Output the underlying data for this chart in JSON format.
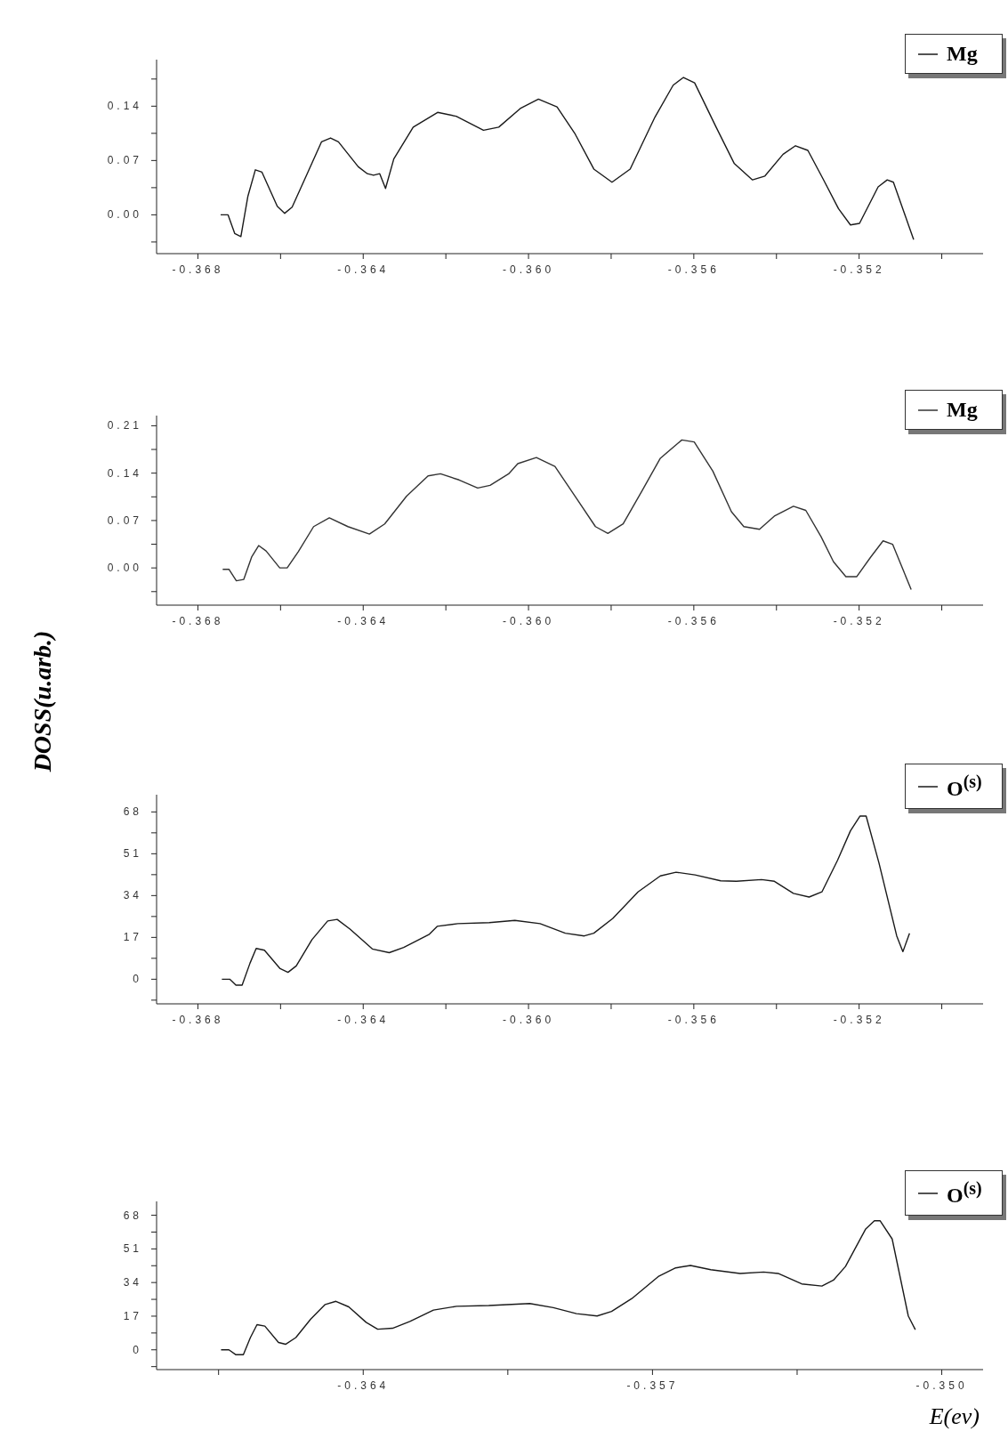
{
  "chart_data": [
    {
      "type": "line",
      "legend": "top right",
      "marker": "none",
      "grid": false,
      "xlim": [
        -0.369,
        -0.349
      ],
      "xticks": [
        {
          "value": -0.368,
          "label": "-0.368"
        },
        {
          "value": -0.366,
          "label": null
        },
        {
          "value": -0.364,
          "label": "-0.364"
        },
        {
          "value": -0.362,
          "label": null
        },
        {
          "value": -0.36,
          "label": "-0.360"
        },
        {
          "value": -0.358,
          "label": null
        },
        {
          "value": -0.356,
          "label": "-0.356"
        },
        {
          "value": -0.354,
          "label": null
        },
        {
          "value": -0.352,
          "label": "-0.352"
        },
        {
          "value": -0.35,
          "label": null
        }
      ],
      "ylim": [
        -0.05,
        0.2
      ],
      "yticks": [
        {
          "value": -0.035,
          "label": null
        },
        {
          "value": 0,
          "label": "0.00"
        },
        {
          "value": 0.035,
          "label": null
        },
        {
          "value": 0.07,
          "label": "0.07"
        },
        {
          "value": 0.105,
          "label": null
        },
        {
          "value": 0.14,
          "label": "0.14"
        },
        {
          "value": 0.175,
          "label": null
        }
      ],
      "series": [
        {
          "name": "Mg",
          "color": "#1a1a1a",
          "x": [
            -0.36745,
            -0.36727,
            -0.36711,
            -0.36696,
            -0.36679,
            -0.36661,
            -0.36645,
            -0.36608,
            -0.3659,
            -0.36572,
            -0.36538,
            -0.36501,
            -0.36479,
            -0.3646,
            -0.36412,
            -0.3639,
            -0.36375,
            -0.3636,
            -0.36346,
            -0.36326,
            -0.36279,
            -0.3622,
            -0.36175,
            -0.36109,
            -0.36072,
            -0.3602,
            -0.35976,
            -0.35931,
            -0.35887,
            -0.35842,
            -0.35798,
            -0.35754,
            -0.35694,
            -0.3565,
            -0.35625,
            -0.35598,
            -0.35546,
            -0.35502,
            -0.35458,
            -0.35428,
            -0.35384,
            -0.35354,
            -0.35324,
            -0.35287,
            -0.3525,
            -0.35221,
            -0.35199,
            -0.35154,
            -0.35132,
            -0.35117,
            -0.35068
          ],
          "values": [
            0,
            0,
            -0.024,
            -0.028,
            0.024,
            0.058,
            0.055,
            0.011,
            0.002,
            0.01,
            0.05,
            0.094,
            0.099,
            0.094,
            0.062,
            0.053,
            0.051,
            0.053,
            0.034,
            0.072,
            0.113,
            0.132,
            0.127,
            0.109,
            0.113,
            0.137,
            0.149,
            0.139,
            0.104,
            0.059,
            0.042,
            0.059,
            0.126,
            0.167,
            0.177,
            0.17,
            0.113,
            0.066,
            0.045,
            0.05,
            0.078,
            0.089,
            0.083,
            0.046,
            0.008,
            -0.013,
            -0.011,
            0.036,
            0.045,
            0.042,
            -0.032
          ]
        }
      ]
    },
    {
      "type": "line",
      "legend": "top right",
      "marker": "none",
      "grid": false,
      "xlim": [
        -0.369,
        -0.349
      ],
      "xticks": [
        {
          "value": -0.368,
          "label": "-0.368"
        },
        {
          "value": -0.366,
          "label": null
        },
        {
          "value": -0.364,
          "label": "-0.364"
        },
        {
          "value": -0.362,
          "label": null
        },
        {
          "value": -0.36,
          "label": "-0.360"
        },
        {
          "value": -0.358,
          "label": null
        },
        {
          "value": -0.356,
          "label": "-0.356"
        },
        {
          "value": -0.354,
          "label": null
        },
        {
          "value": -0.352,
          "label": "-0.352"
        },
        {
          "value": -0.35,
          "label": null
        }
      ],
      "ylim": [
        -0.055,
        0.225
      ],
      "yticks": [
        {
          "value": -0.035,
          "label": null
        },
        {
          "value": 0,
          "label": "0.00"
        },
        {
          "value": 0.035,
          "label": null
        },
        {
          "value": 0.07,
          "label": "0.07"
        },
        {
          "value": 0.105,
          "label": null
        },
        {
          "value": 0.14,
          "label": "0.14"
        },
        {
          "value": 0.175,
          "label": null
        },
        {
          "value": 0.21,
          "label": "0.21"
        }
      ],
      "series": [
        {
          "name": "Mg",
          "color": "#333333",
          "x": [
            -0.3674,
            -0.36725,
            -0.36707,
            -0.36689,
            -0.3667,
            -0.36653,
            -0.36635,
            -0.36602,
            -0.36584,
            -0.36557,
            -0.3652,
            -0.36482,
            -0.36437,
            -0.36385,
            -0.36348,
            -0.36295,
            -0.36243,
            -0.36213,
            -0.36168,
            -0.36123,
            -0.36093,
            -0.36048,
            -0.36026,
            -0.35981,
            -0.35936,
            -0.35883,
            -0.35838,
            -0.35808,
            -0.35771,
            -0.35726,
            -0.35681,
            -0.35629,
            -0.35599,
            -0.35554,
            -0.35509,
            -0.35479,
            -0.35441,
            -0.35404,
            -0.35359,
            -0.35329,
            -0.35292,
            -0.35262,
            -0.35232,
            -0.35206,
            -0.35172,
            -0.35142,
            -0.35119,
            -0.35074
          ],
          "values": [
            -0.002,
            -0.002,
            -0.019,
            -0.017,
            0.016,
            0.033,
            0.025,
            0,
            0,
            0.024,
            0.061,
            0.074,
            0.061,
            0.05,
            0.065,
            0.106,
            0.136,
            0.139,
            0.13,
            0.118,
            0.122,
            0.139,
            0.154,
            0.163,
            0.15,
            0.102,
            0.061,
            0.051,
            0.065,
            0.113,
            0.162,
            0.189,
            0.186,
            0.143,
            0.083,
            0.061,
            0.057,
            0.077,
            0.091,
            0.085,
            0.046,
            0.009,
            -0.013,
            -0.013,
            0.016,
            0.04,
            0.035,
            -0.032
          ]
        }
      ]
    },
    {
      "type": "line",
      "legend": "top right",
      "marker": "none",
      "grid": false,
      "ylabel": "DOSS(u.arb.)",
      "xlim": [
        -0.369,
        -0.349
      ],
      "xticks": [
        {
          "value": -0.368,
          "label": "-0.368"
        },
        {
          "value": -0.366,
          "label": null
        },
        {
          "value": -0.364,
          "label": "-0.364"
        },
        {
          "value": -0.362,
          "label": null
        },
        {
          "value": -0.36,
          "label": "-0.360"
        },
        {
          "value": -0.358,
          "label": null
        },
        {
          "value": -0.356,
          "label": "-0.356"
        },
        {
          "value": -0.354,
          "label": null
        },
        {
          "value": -0.352,
          "label": "-0.352"
        },
        {
          "value": -0.35,
          "label": null
        }
      ],
      "ylim": [
        -10,
        75
      ],
      "yticks": [
        {
          "value": -8.5,
          "label": null
        },
        0,
        {
          "value": 8.5,
          "label": null
        },
        17,
        {
          "value": 25.5,
          "label": null
        },
        34,
        {
          "value": 42.5,
          "label": null
        },
        51,
        {
          "value": 59.5,
          "label": null
        },
        68
      ],
      "series": [
        {
          "name": "O$^{(s)}$",
          "color": "#1a1a1a",
          "x": [
            -0.36742,
            -0.36723,
            -0.36708,
            -0.36693,
            -0.36674,
            -0.36659,
            -0.36639,
            -0.36601,
            -0.36582,
            -0.36562,
            -0.36524,
            -0.36486,
            -0.36463,
            -0.36432,
            -0.36378,
            -0.36337,
            -0.36302,
            -0.3624,
            -0.36221,
            -0.36171,
            -0.36095,
            -0.36033,
            -0.35972,
            -0.35911,
            -0.35865,
            -0.35842,
            -0.35796,
            -0.35735,
            -0.35681,
            -0.35643,
            -0.35597,
            -0.35535,
            -0.35497,
            -0.35436,
            -0.35405,
            -0.35359,
            -0.35321,
            -0.3529,
            -0.35252,
            -0.35221,
            -0.35198,
            -0.35183,
            -0.35152,
            -0.35109,
            -0.35094,
            -0.35078
          ],
          "values": [
            0,
            0,
            -2.4,
            -2.4,
            6.5,
            12.5,
            11.8,
            4.3,
            2.8,
            5.4,
            16.1,
            23.7,
            24.3,
            20.4,
            12.3,
            10.8,
            12.9,
            18.3,
            21.5,
            22.6,
            23,
            23.9,
            22.6,
            18.7,
            17.6,
            18.7,
            24.7,
            35.5,
            42,
            43.5,
            42.4,
            40,
            39.8,
            40.5,
            39.8,
            34.9,
            33.4,
            35.5,
            48.4,
            60.3,
            66.3,
            66.3,
            47.3,
            17.6,
            11.2,
            18.7
          ]
        }
      ]
    },
    {
      "type": "line",
      "legend": "top right",
      "marker": "none",
      "grid": false,
      "xlabel": "E(ev)",
      "xlim": [
        -0.369,
        -0.349
      ],
      "xticks": [
        {
          "value": -0.3675,
          "label": null
        },
        {
          "value": -0.364,
          "label": "-0.364"
        },
        {
          "value": -0.3605,
          "label": null
        },
        {
          "value": -0.357,
          "label": "-0.357"
        },
        {
          "value": -0.3535,
          "label": null
        },
        {
          "value": -0.35,
          "label": "-0.350"
        }
      ],
      "ylim": [
        -10,
        75
      ],
      "yticks": [
        {
          "value": -8.5,
          "label": null
        },
        0,
        {
          "value": 8.5,
          "label": null
        },
        17,
        {
          "value": 25.5,
          "label": null
        },
        34,
        {
          "value": 42.5,
          "label": null
        },
        51,
        {
          "value": 59.5,
          "label": null
        },
        68
      ],
      "series": [
        {
          "name": "O$^{(s)}$",
          "color": "#1a1a1a",
          "x": [
            -0.36744,
            -0.36725,
            -0.36708,
            -0.3669,
            -0.36673,
            -0.36657,
            -0.36638,
            -0.36605,
            -0.36588,
            -0.36563,
            -0.36527,
            -0.36492,
            -0.36466,
            -0.36435,
            -0.36393,
            -0.36365,
            -0.36329,
            -0.36287,
            -0.3623,
            -0.36174,
            -0.36096,
            -0.35997,
            -0.3594,
            -0.35884,
            -0.35834,
            -0.35799,
            -0.3575,
            -0.35686,
            -0.35644,
            -0.35608,
            -0.35559,
            -0.35488,
            -0.35431,
            -0.35396,
            -0.35339,
            -0.3529,
            -0.35262,
            -0.35233,
            -0.35184,
            -0.35163,
            -0.35149,
            -0.3512,
            -0.35081,
            -0.35064
          ],
          "values": [
            0,
            0,
            -2.5,
            -2.5,
            6.2,
            12.7,
            12,
            3.7,
            2.8,
            6.2,
            15.5,
            22.9,
            24.5,
            21.7,
            13.9,
            10.4,
            10.9,
            14.3,
            20.1,
            22,
            22.4,
            23.4,
            21.3,
            18.3,
            17.1,
            19.4,
            25.9,
            37,
            41.4,
            42.6,
            40.5,
            38.6,
            39.3,
            38.6,
            33.3,
            32.2,
            35.2,
            42.1,
            61.1,
            65.2,
            65.2,
            56,
            17.1,
            10.2
          ]
        }
      ]
    }
  ]
}
